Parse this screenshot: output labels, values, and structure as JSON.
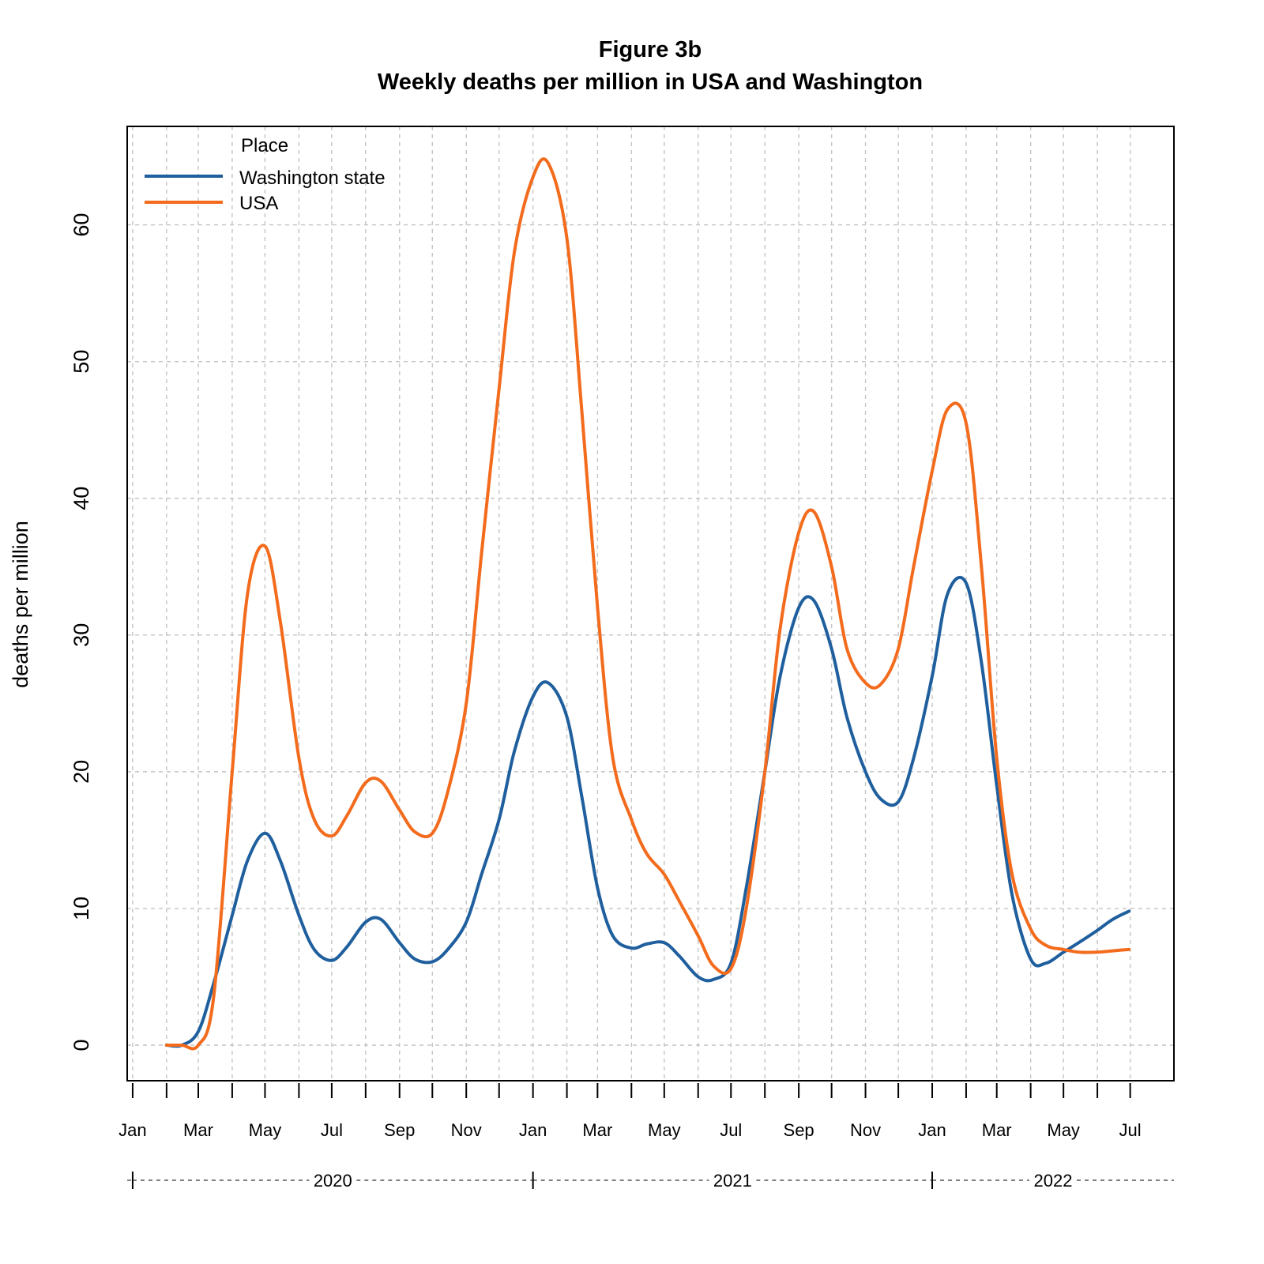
{
  "chart_data": {
    "type": "line",
    "title": "Figure 3b",
    "subtitle": "Weekly deaths per million in USA and Washington",
    "xlabel": "",
    "ylabel": "deaths per million",
    "xlim": [
      "2019-12-27",
      "2022-08-10"
    ],
    "ylim": [
      -2.6,
      67.2
    ],
    "yticks": [
      0,
      10,
      20,
      30,
      40,
      50,
      60
    ],
    "grid": true,
    "legend_title": "Place",
    "legend_position": "top-left",
    "xticks": [
      {
        "date": "2020-01-01",
        "label": "Jan"
      },
      {
        "date": "2020-03-01",
        "label": "Mar"
      },
      {
        "date": "2020-05-01",
        "label": "May"
      },
      {
        "date": "2020-07-01",
        "label": "Jul"
      },
      {
        "date": "2020-09-01",
        "label": "Sep"
      },
      {
        "date": "2020-11-01",
        "label": "Nov"
      },
      {
        "date": "2021-01-01",
        "label": "Jan"
      },
      {
        "date": "2021-03-01",
        "label": "Mar"
      },
      {
        "date": "2021-05-01",
        "label": "May"
      },
      {
        "date": "2021-07-01",
        "label": "Jul"
      },
      {
        "date": "2021-09-01",
        "label": "Sep"
      },
      {
        "date": "2021-11-01",
        "label": "Nov"
      },
      {
        "date": "2022-01-01",
        "label": "Jan"
      },
      {
        "date": "2022-03-01",
        "label": "Mar"
      },
      {
        "date": "2022-05-01",
        "label": "May"
      },
      {
        "date": "2022-07-01",
        "label": "Jul"
      }
    ],
    "minor_ticks": [
      "2020-02-01",
      "2020-04-01",
      "2020-06-01",
      "2020-08-01",
      "2020-10-01",
      "2020-12-01",
      "2021-02-01",
      "2021-04-01",
      "2021-06-01",
      "2021-08-01",
      "2021-10-01",
      "2021-12-01",
      "2022-02-01",
      "2022-04-01",
      "2022-06-01"
    ],
    "years": [
      {
        "label": "2020",
        "start": "2020-01-01",
        "end": "2021-01-01"
      },
      {
        "label": "2021",
        "start": "2021-01-01",
        "end": "2022-01-01"
      },
      {
        "label": "2022",
        "start": "2022-01-01",
        "end": "2022-08-10"
      }
    ],
    "series": [
      {
        "name": "Washington state",
        "color": "#1f5f9e",
        "x": [
          "2020-02-01",
          "2020-02-15",
          "2020-03-01",
          "2020-03-15",
          "2020-04-01",
          "2020-04-15",
          "2020-05-01",
          "2020-05-15",
          "2020-06-01",
          "2020-06-15",
          "2020-07-01",
          "2020-07-15",
          "2020-08-01",
          "2020-08-15",
          "2020-09-01",
          "2020-09-15",
          "2020-10-01",
          "2020-10-15",
          "2020-11-01",
          "2020-11-15",
          "2020-12-01",
          "2020-12-15",
          "2021-01-01",
          "2021-01-15",
          "2021-02-01",
          "2021-02-15",
          "2021-03-01",
          "2021-03-15",
          "2021-04-01",
          "2021-04-15",
          "2021-05-01",
          "2021-05-15",
          "2021-06-01",
          "2021-06-15",
          "2021-07-01",
          "2021-07-15",
          "2021-08-01",
          "2021-08-15",
          "2021-09-01",
          "2021-09-15",
          "2021-10-01",
          "2021-10-15",
          "2021-11-01",
          "2021-11-15",
          "2021-12-01",
          "2021-12-15",
          "2022-01-01",
          "2022-01-15",
          "2022-02-01",
          "2022-02-15",
          "2022-03-01",
          "2022-03-15",
          "2022-04-01",
          "2022-04-15",
          "2022-05-01",
          "2022-05-15",
          "2022-06-01",
          "2022-06-15",
          "2022-06-30"
        ],
        "y": [
          0,
          0,
          1.0,
          4.5,
          9.5,
          13.5,
          15.5,
          13.5,
          9.5,
          7.0,
          6.2,
          7.2,
          9.0,
          9.2,
          7.5,
          6.3,
          6.1,
          7.0,
          9.0,
          12.5,
          16.5,
          21.5,
          25.5,
          26.5,
          24.0,
          18.0,
          11.5,
          8.0,
          7.1,
          7.4,
          7.5,
          6.5,
          5.0,
          4.8,
          6.0,
          11.5,
          20.0,
          27.0,
          32.0,
          32.5,
          29.0,
          24.0,
          20.0,
          18.0,
          17.8,
          21.0,
          27.0,
          33.0,
          33.8,
          28.0,
          19.0,
          11.0,
          6.3,
          6.0,
          6.8,
          7.5,
          8.4,
          9.2,
          9.8
        ]
      },
      {
        "name": "USA",
        "color": "#f36b1c",
        "x": [
          "2020-02-01",
          "2020-02-15",
          "2020-03-01",
          "2020-03-15",
          "2020-04-01",
          "2020-04-15",
          "2020-05-01",
          "2020-05-15",
          "2020-06-01",
          "2020-06-15",
          "2020-07-01",
          "2020-07-15",
          "2020-08-01",
          "2020-08-15",
          "2020-09-01",
          "2020-09-15",
          "2020-10-01",
          "2020-10-15",
          "2020-11-01",
          "2020-11-15",
          "2020-12-01",
          "2020-12-15",
          "2021-01-01",
          "2021-01-15",
          "2021-02-01",
          "2021-02-15",
          "2021-03-01",
          "2021-03-15",
          "2021-04-01",
          "2021-04-15",
          "2021-05-01",
          "2021-05-15",
          "2021-06-01",
          "2021-06-15",
          "2021-07-01",
          "2021-07-15",
          "2021-08-01",
          "2021-08-15",
          "2021-09-01",
          "2021-09-15",
          "2021-10-01",
          "2021-10-15",
          "2021-11-01",
          "2021-11-15",
          "2021-12-01",
          "2021-12-15",
          "2022-01-01",
          "2022-01-15",
          "2022-02-01",
          "2022-02-15",
          "2022-03-01",
          "2022-03-15",
          "2022-04-01",
          "2022-04-15",
          "2022-05-01",
          "2022-05-15",
          "2022-06-01",
          "2022-06-15",
          "2022-06-30"
        ],
        "y": [
          0,
          0,
          0,
          3.5,
          20.0,
          33.0,
          36.5,
          31.0,
          21.0,
          16.5,
          15.3,
          16.8,
          19.2,
          19.3,
          17.2,
          15.6,
          15.5,
          18.5,
          25.0,
          36.0,
          48.0,
          58.0,
          63.5,
          64.5,
          59.0,
          46.0,
          32.0,
          21.0,
          16.5,
          14.0,
          12.5,
          10.5,
          8.0,
          5.8,
          5.6,
          10.0,
          20.0,
          30.5,
          37.5,
          39.0,
          35.0,
          29.0,
          26.5,
          26.4,
          29.0,
          35.0,
          42.0,
          46.5,
          45.5,
          35.0,
          21.0,
          12.5,
          8.5,
          7.3,
          7.0,
          6.8,
          6.8,
          6.9,
          7.0
        ]
      }
    ]
  }
}
